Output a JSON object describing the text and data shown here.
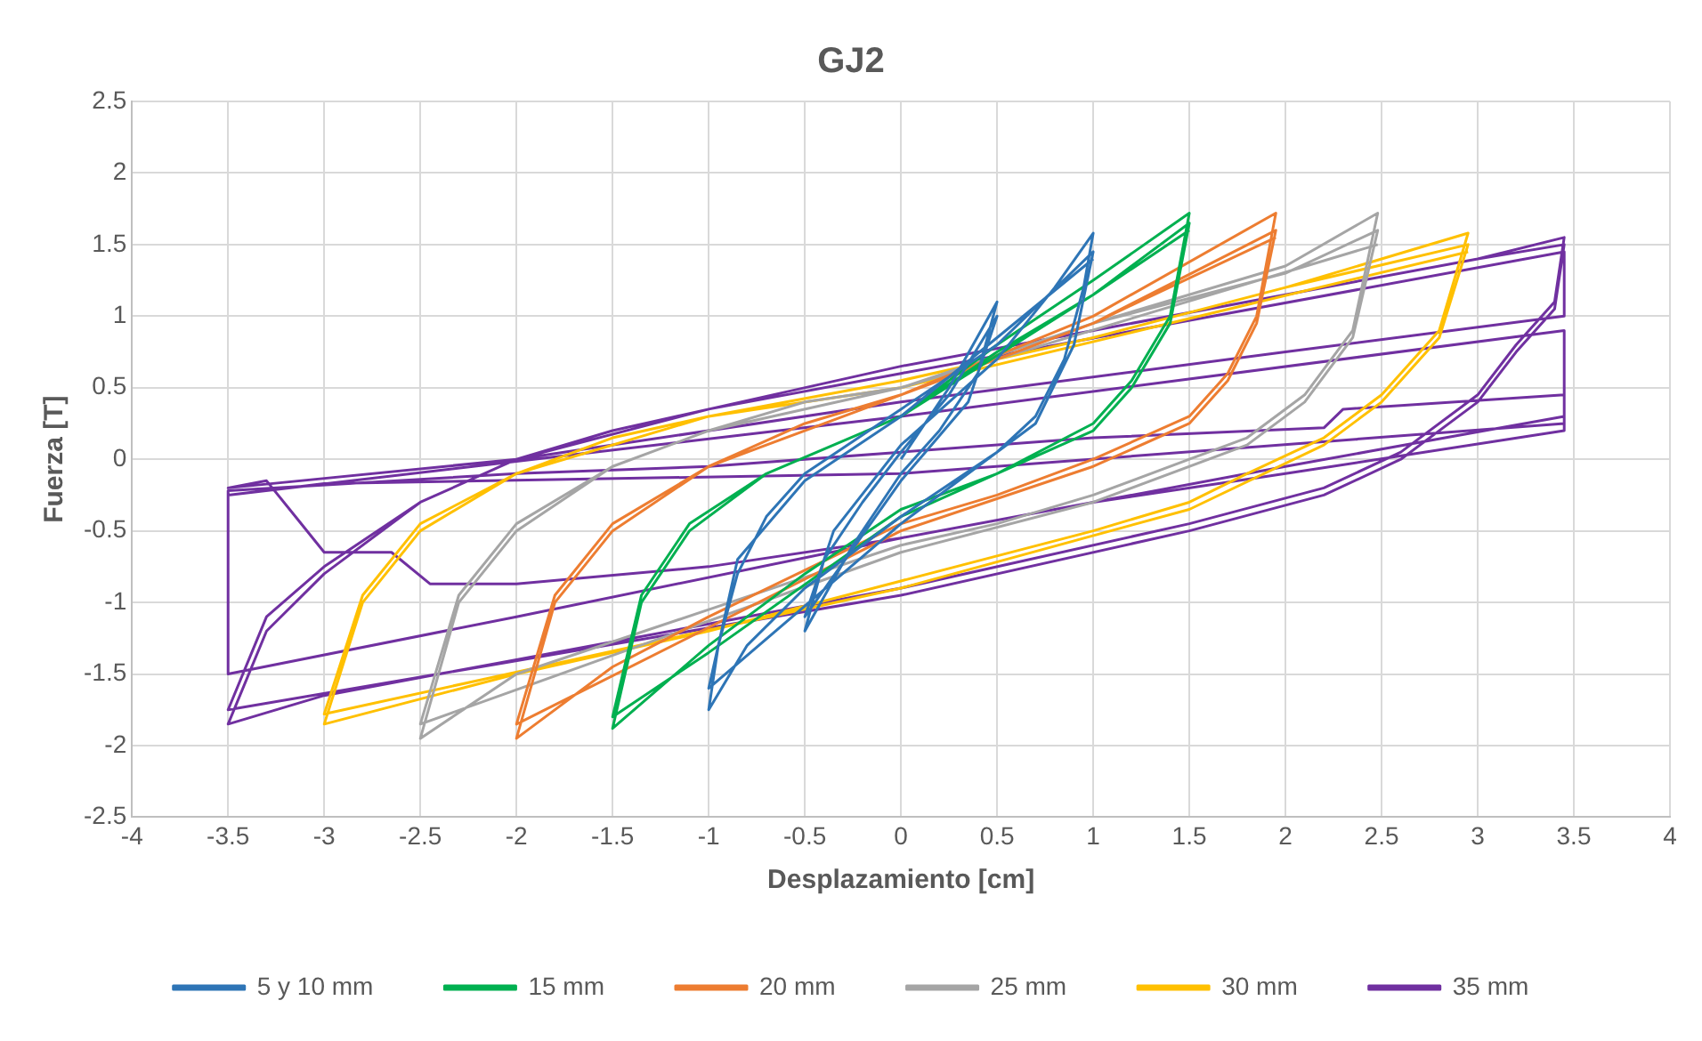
{
  "chart_data": {
    "type": "line",
    "title": "GJ2",
    "xlabel": "Desplazamiento [cm]",
    "ylabel": "Fuerza [T]",
    "xlim": [
      -4,
      4
    ],
    "ylim": [
      -2.5,
      2.5
    ],
    "xticks": [
      -4,
      -3.5,
      -3,
      -2.5,
      -2,
      -1.5,
      -1,
      -0.5,
      0,
      0.5,
      1,
      1.5,
      2,
      2.5,
      3,
      3.5,
      4
    ],
    "yticks": [
      -2.5,
      -2,
      -1.5,
      -1,
      -0.5,
      0,
      0.5,
      1,
      1.5,
      2,
      2.5
    ],
    "grid": true,
    "legend": "bottom",
    "marker": "none",
    "line_style": "solid",
    "series": [
      {
        "name": "5 y 10 mm",
        "color": "#2e75b6",
        "x": [
          0,
          0.25,
          0.5,
          0.4,
          0.2,
          0,
          -0.25,
          -0.5,
          -0.4,
          -0.2,
          0,
          0.25,
          0.5,
          0.35,
          0,
          -0.5,
          -0.35,
          0,
          0.5,
          0.8,
          1,
          0.95,
          0.85,
          0.7,
          0.5,
          0,
          -0.5,
          -0.8,
          -1,
          -0.95,
          -0.85,
          -0.7,
          -0.5,
          0,
          0.5,
          1,
          0.9,
          0.7,
          0,
          -1,
          -0.85,
          -0.5,
          0,
          1
        ],
        "values": [
          0,
          0.5,
          1.1,
          0.6,
          0.2,
          -0.1,
          -0.6,
          -1.2,
          -0.7,
          -0.3,
          0.05,
          0.45,
          1,
          0.4,
          -0.15,
          -1.1,
          -0.5,
          0.1,
          0.7,
          1.2,
          1.58,
          1.2,
          0.7,
          0.3,
          0.05,
          -0.4,
          -0.9,
          -1.3,
          -1.75,
          -1.3,
          -0.8,
          -0.4,
          -0.1,
          0.35,
          0.8,
          1.45,
          0.8,
          0.25,
          -0.45,
          -1.6,
          -0.7,
          -0.15,
          0.3,
          1.4
        ]
      },
      {
        "name": "15 mm",
        "color": "#00b050",
        "x": [
          0,
          0.5,
          1,
          1.5,
          1.4,
          1.2,
          1,
          0.5,
          0,
          -0.5,
          -1,
          -1.5,
          -1.35,
          -1.1,
          -0.7,
          0,
          0.5,
          1,
          1.5,
          1.4,
          1.2,
          1,
          0,
          -1,
          -1.5,
          -1.35,
          -1.1,
          -0.7,
          0,
          1,
          1.5
        ],
        "values": [
          0.3,
          0.8,
          1.25,
          1.72,
          1,
          0.55,
          0.25,
          -0.1,
          -0.35,
          -0.8,
          -1.3,
          -1.88,
          -1,
          -0.5,
          -0.1,
          0.3,
          0.75,
          1.15,
          1.65,
          0.95,
          0.5,
          0.2,
          -0.4,
          -1.35,
          -1.8,
          -0.95,
          -0.45,
          -0.1,
          0.3,
          1.15,
          1.6
        ]
      },
      {
        "name": "20 mm",
        "color": "#ed7d31",
        "x": [
          0,
          1,
          1.95,
          1.85,
          1.7,
          1.5,
          1,
          0.5,
          0,
          -1,
          -1.5,
          -2,
          -1.8,
          -1.5,
          -1,
          -0.5,
          0,
          1,
          1.95,
          1.85,
          1.7,
          1.5,
          1,
          0,
          -2,
          -1.8,
          -1.5,
          -1,
          0,
          1,
          1.95
        ],
        "values": [
          0.45,
          1,
          1.72,
          1,
          0.6,
          0.3,
          0,
          -0.25,
          -0.45,
          -1.1,
          -1.45,
          -1.95,
          -1,
          -0.5,
          -0.05,
          0.25,
          0.45,
          0.95,
          1.6,
          0.95,
          0.55,
          0.25,
          -0.05,
          -0.5,
          -1.85,
          -0.95,
          -0.45,
          -0.05,
          0.45,
          0.95,
          1.55
        ]
      },
      {
        "name": "25 mm",
        "color": "#a5a5a5",
        "x": [
          0,
          1,
          2,
          2.48,
          2.35,
          2.1,
          1.8,
          1.5,
          1,
          0.5,
          0,
          -1,
          -2,
          -2.5,
          -2.3,
          -2,
          -1.5,
          -1,
          -0.5,
          0,
          1,
          2,
          2.48,
          2.35,
          2.1,
          1.8,
          1,
          0,
          -2.5,
          -2.3,
          -2,
          -1.5,
          -1,
          0,
          2.48
        ],
        "values": [
          0.5,
          0.95,
          1.35,
          1.72,
          0.9,
          0.45,
          0.15,
          0,
          -0.25,
          -0.45,
          -0.6,
          -1.05,
          -1.5,
          -1.95,
          -1,
          -0.5,
          -0.05,
          0.2,
          0.4,
          0.5,
          0.95,
          1.3,
          1.6,
          0.85,
          0.4,
          0.1,
          -0.3,
          -0.65,
          -1.85,
          -0.95,
          -0.45,
          -0.05,
          0.2,
          0.5,
          1.5
        ]
      },
      {
        "name": "30 mm",
        "color": "#ffc000",
        "x": [
          0,
          1,
          2,
          2.95,
          2.8,
          2.5,
          2.2,
          1.8,
          1.5,
          1,
          0,
          -1,
          -2,
          -3,
          -2.8,
          -2.5,
          -2,
          -1.5,
          -1,
          0,
          1,
          2,
          2.95,
          2.8,
          2.5,
          2.2,
          1.5,
          0,
          -3,
          -2.8,
          -2.5,
          -2,
          -1,
          0,
          2.95
        ],
        "values": [
          0.55,
          0.85,
          1.2,
          1.58,
          0.9,
          0.45,
          0.15,
          -0.1,
          -0.3,
          -0.5,
          -0.85,
          -1.2,
          -1.5,
          -1.85,
          -1,
          -0.5,
          -0.1,
          0.15,
          0.3,
          0.55,
          0.85,
          1.2,
          1.5,
          0.85,
          0.4,
          0.1,
          -0.35,
          -0.9,
          -1.78,
          -0.95,
          -0.45,
          -0.1,
          0.3,
          0.5,
          1.45
        ]
      },
      {
        "name": "35 mm",
        "color": "#7030a0",
        "x": [
          0,
          1,
          2,
          3,
          3.45,
          3.4,
          3.2,
          3,
          2.6,
          2.2,
          1.5,
          0,
          -1,
          -2,
          -3,
          -3.5,
          -3.3,
          -3,
          -2.5,
          -2,
          -1.5,
          -1,
          0,
          1,
          2,
          3,
          3.45,
          3.4,
          3.2,
          3,
          2.6,
          2.2,
          1.5,
          0,
          -3.5,
          -3.3,
          -3,
          -2.5,
          -2,
          -1,
          0,
          3.45,
          3.45,
          2,
          0,
          -2,
          -3.5,
          -3.3,
          -3.15,
          -3,
          -2.65,
          -2.45,
          -2,
          -1,
          0,
          1,
          2,
          3.45,
          3.45,
          2.3,
          2.2,
          1,
          0,
          -1,
          -2,
          -3.5,
          -3.5,
          -2,
          0,
          2,
          3.45,
          3.45,
          0,
          -3.5,
          -3,
          0,
          3.45
        ],
        "values": [
          0.65,
          0.9,
          1.15,
          1.4,
          1.55,
          1.1,
          0.8,
          0.45,
          0.05,
          -0.2,
          -0.45,
          -0.9,
          -1.15,
          -1.4,
          -1.65,
          -1.85,
          -1.2,
          -0.8,
          -0.3,
          0,
          0.2,
          0.35,
          0.65,
          0.9,
          1.15,
          1.4,
          1.5,
          1.05,
          0.75,
          0.4,
          0,
          -0.25,
          -0.5,
          -0.95,
          -1.75,
          -1.1,
          -0.75,
          -0.3,
          0,
          0.35,
          0.6,
          1.45,
          1,
          0.75,
          0.4,
          0,
          -0.2,
          -0.15,
          -0.4,
          -0.65,
          -0.65,
          -0.87,
          -0.87,
          -0.75,
          -0.55,
          -0.3,
          -0.1,
          0.2,
          0.45,
          0.35,
          0.22,
          0.15,
          0.05,
          -0.05,
          -0.1,
          -0.22,
          -1.5,
          -1.1,
          -0.55,
          -0.05,
          0.3,
          0.9,
          0.3,
          -0.25,
          -0.17,
          -0.1,
          0.25
        ]
      }
    ]
  }
}
